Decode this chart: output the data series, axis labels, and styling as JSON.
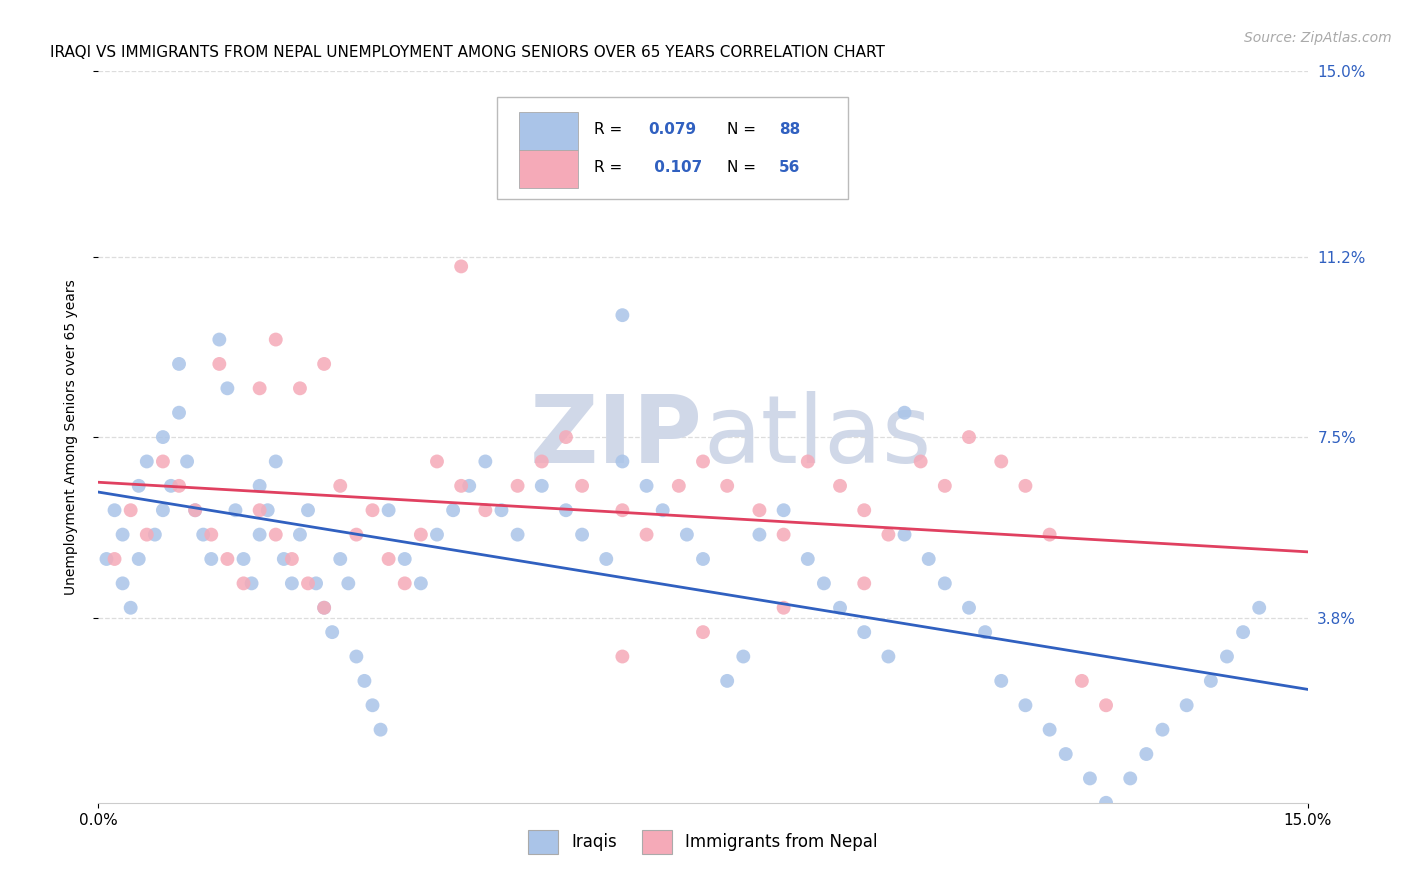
{
  "title": "IRAQI VS IMMIGRANTS FROM NEPAL UNEMPLOYMENT AMONG SENIORS OVER 65 YEARS CORRELATION CHART",
  "source": "Source: ZipAtlas.com",
  "ylabel": "Unemployment Among Seniors over 65 years",
  "legend_iraqi": "Iraqis",
  "legend_nepal": "Immigrants from Nepal",
  "R_iraqi": 0.079,
  "N_iraqi": 88,
  "R_nepal": 0.107,
  "N_nepal": 56,
  "iraqi_color": "#aac4e8",
  "nepal_color": "#f5aab8",
  "iraqi_line_color": "#3060c0",
  "nepal_line_color": "#e04060",
  "watermark_color": "#d0d8e8",
  "xlim": [
    0.0,
    0.15
  ],
  "ylim": [
    0.0,
    0.15
  ],
  "y_ticks": [
    0.038,
    0.075,
    0.112,
    0.15
  ],
  "y_tick_labels": [
    "3.8%",
    "7.5%",
    "11.2%",
    "15.0%"
  ],
  "grid_color": "#dddddd",
  "background_color": "#ffffff",
  "title_fontsize": 11,
  "source_fontsize": 10,
  "tick_fontsize": 11,
  "ylabel_fontsize": 10
}
